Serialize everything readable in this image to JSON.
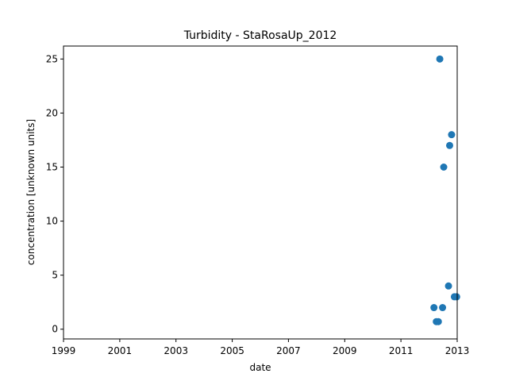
{
  "chart_data": {
    "type": "scatter",
    "title": "Turbidity - StaRosaUp_2012",
    "xlabel": "date",
    "ylabel": "concentration [unknown units]",
    "xlim": [
      "1999-01-01",
      "2013-01-01"
    ],
    "ylim": [
      -0.9,
      26.2
    ],
    "x_ticks": [
      "1999",
      "2001",
      "2003",
      "2005",
      "2007",
      "2009",
      "2011",
      "2013"
    ],
    "y_ticks": [
      0,
      5,
      10,
      15,
      20,
      25
    ],
    "marker_color": "#1f77b4",
    "grid": false,
    "points": [
      {
        "x": "2012-03-05",
        "y": 2
      },
      {
        "x": "2012-04-05",
        "y": 0.7
      },
      {
        "x": "2012-05-01",
        "y": 0.7
      },
      {
        "x": "2012-05-20",
        "y": 25
      },
      {
        "x": "2012-06-25",
        "y": 2
      },
      {
        "x": "2012-07-10",
        "y": 15
      },
      {
        "x": "2012-09-10",
        "y": 4
      },
      {
        "x": "2012-09-25",
        "y": 17
      },
      {
        "x": "2012-10-20",
        "y": 18
      },
      {
        "x": "2012-11-25",
        "y": 3
      },
      {
        "x": "2012-12-25",
        "y": 3
      }
    ]
  }
}
